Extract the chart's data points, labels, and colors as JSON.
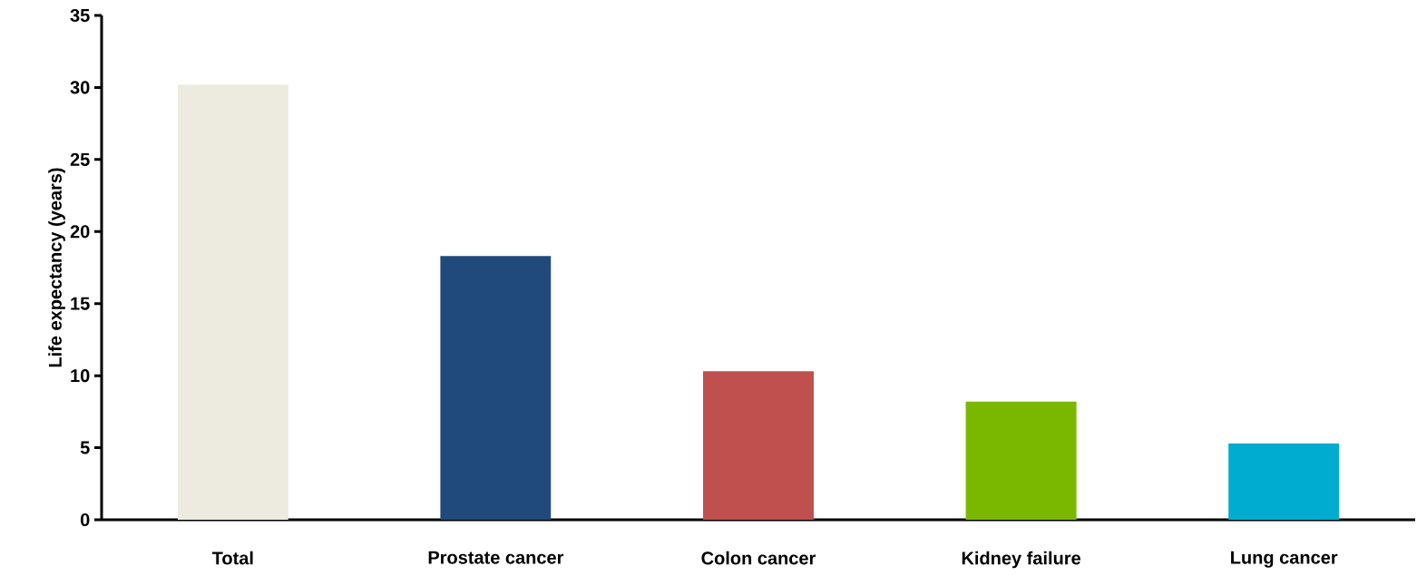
{
  "chart_data": {
    "type": "bar",
    "ylabel": "Life expectancy (years)",
    "categories": [
      "Total",
      "Prostate cancer",
      "Colon cancer",
      "Kidney failure",
      "Lung cancer"
    ],
    "values": [
      30.2,
      18.3,
      10.3,
      8.2,
      5.3
    ],
    "colors": [
      "#edeae0",
      "#204a7c",
      "#c0504d",
      "#7ab800",
      "#00acd0"
    ],
    "ylim": [
      0,
      35
    ],
    "yticks": [
      0,
      5,
      10,
      15,
      20,
      25,
      30,
      35
    ]
  }
}
